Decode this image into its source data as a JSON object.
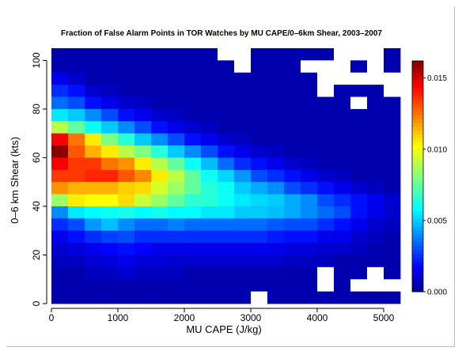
{
  "chart_data": {
    "type": "heatmap",
    "title": "Fraction of False Alarm Points in TOR Watches by MU CAPE/0–6km Shear, 2003–2007",
    "xlabel": "MU CAPE (J/kg)",
    "ylabel": "0–6 km Shear (kts)",
    "xlim": [
      0,
      5250
    ],
    "ylim": [
      0,
      105
    ],
    "x_bin_width": 250,
    "y_bin_width": 5,
    "x_bin_starts": [
      0,
      250,
      500,
      750,
      1000,
      1250,
      1500,
      1750,
      2000,
      2250,
      2500,
      2750,
      3000,
      3250,
      3500,
      3750,
      4000,
      4250,
      4500,
      4750,
      5000
    ],
    "y_bin_starts": [
      100,
      95,
      90,
      85,
      80,
      75,
      70,
      65,
      60,
      55,
      50,
      45,
      40,
      35,
      30,
      25,
      20,
      15,
      10,
      5,
      0
    ],
    "values_order": "rows from top (shear 100-105) to bottom (shear 0-5); columns from CAPE 0 to 5000; null = no data (white)",
    "values": [
      [
        0.0005,
        0.0005,
        0.0005,
        0.0005,
        0.0005,
        0.0005,
        0.0005,
        0.0005,
        0.0005,
        0.0005,
        null,
        null,
        0.0005,
        0.0005,
        0.0005,
        0.0005,
        0.0005,
        null,
        null,
        null,
        0.0005
      ],
      [
        0.0005,
        0.0005,
        0.0005,
        0.0005,
        0.0005,
        0.0005,
        0.0005,
        0.0005,
        0.0005,
        0.0005,
        0.0005,
        null,
        0.0005,
        0.0005,
        0.0005,
        null,
        null,
        null,
        0.0005,
        null,
        0.0005
      ],
      [
        0.0015,
        0.001,
        0.0005,
        0.0005,
        0.0005,
        0.0005,
        0.0005,
        0.0005,
        0.0005,
        0.0005,
        0.0005,
        0.0005,
        0.0005,
        0.0005,
        0.0005,
        0.0005,
        null,
        null,
        null,
        null,
        null
      ],
      [
        0.0025,
        0.002,
        0.001,
        0.0008,
        0.0005,
        0.0005,
        0.0005,
        0.0005,
        0.0005,
        0.0005,
        0.0005,
        0.0005,
        0.0005,
        0.0005,
        0.0005,
        0.0005,
        null,
        0.0005,
        0.0005,
        0.0005,
        null
      ],
      [
        0.0035,
        0.003,
        0.002,
        0.0015,
        0.001,
        0.0008,
        0.0005,
        0.0005,
        0.0005,
        0.0005,
        0.0005,
        0.0005,
        0.0005,
        0.0005,
        0.0005,
        0.0005,
        0.0005,
        0.0005,
        null,
        0.0005,
        0.0005
      ],
      [
        0.0055,
        0.005,
        0.004,
        0.003,
        0.002,
        0.0015,
        0.001,
        0.0008,
        0.0005,
        0.0005,
        0.0005,
        0.0005,
        0.0005,
        0.0005,
        0.0005,
        0.0005,
        0.0005,
        0.0005,
        0.0005,
        0.0005,
        0.0005
      ],
      [
        0.009,
        0.0075,
        0.006,
        0.005,
        0.004,
        0.003,
        0.002,
        0.0015,
        0.001,
        0.0008,
        0.0005,
        0.0005,
        0.0005,
        0.0005,
        0.0005,
        0.0005,
        0.0005,
        0.0005,
        0.0005,
        0.0005,
        0.0005
      ],
      [
        0.0145,
        0.0125,
        0.0105,
        0.008,
        0.0065,
        0.005,
        0.004,
        0.003,
        0.002,
        0.0015,
        0.001,
        0.0008,
        0.0005,
        0.0005,
        0.0005,
        0.0005,
        0.0005,
        0.0005,
        0.0005,
        0.0005,
        0.0005
      ],
      [
        0.016,
        0.013,
        0.0115,
        0.0105,
        0.009,
        0.008,
        0.0065,
        0.005,
        0.004,
        0.003,
        0.002,
        0.0015,
        0.001,
        0.0008,
        0.0005,
        0.0005,
        0.0005,
        0.0005,
        0.0005,
        0.0005,
        0.0005
      ],
      [
        0.0145,
        0.0135,
        0.0135,
        0.0125,
        0.012,
        0.0105,
        0.009,
        0.0075,
        0.006,
        0.0048,
        0.0035,
        0.0025,
        0.002,
        0.0015,
        0.001,
        0.0008,
        0.0005,
        0.0005,
        0.0005,
        0.0005,
        0.0005
      ],
      [
        0.0135,
        0.0135,
        0.0138,
        0.0138,
        0.013,
        0.0122,
        0.0105,
        0.009,
        0.0075,
        0.006,
        0.0052,
        0.0042,
        0.003,
        0.0025,
        0.002,
        0.0015,
        0.001,
        0.0008,
        0.0005,
        0.0005,
        0.0005
      ],
      [
        0.012,
        0.0115,
        0.0115,
        0.0115,
        0.011,
        0.0108,
        0.0095,
        0.0085,
        0.0075,
        0.0065,
        0.006,
        0.005,
        0.0045,
        0.004,
        0.003,
        0.0025,
        0.002,
        0.0015,
        0.001,
        0.0008,
        0.0005
      ],
      [
        0.0085,
        0.0105,
        0.0102,
        0.0102,
        0.0108,
        0.0093,
        0.0085,
        0.0075,
        0.0066,
        0.0065,
        0.006,
        0.0055,
        0.0052,
        0.005,
        0.0045,
        0.004,
        0.003,
        0.0025,
        0.002,
        0.0015,
        0.001
      ],
      [
        0.004,
        0.0055,
        0.0058,
        0.006,
        0.0062,
        0.0058,
        0.0062,
        0.0058,
        0.0058,
        0.0055,
        0.0055,
        0.005,
        0.005,
        0.0048,
        0.0045,
        0.004,
        0.0035,
        0.003,
        0.002,
        0.0015,
        0.001
      ],
      [
        0.0025,
        0.003,
        0.0042,
        0.0048,
        0.004,
        0.0035,
        0.0035,
        0.0038,
        0.0035,
        0.0035,
        0.0035,
        0.0035,
        0.0035,
        0.0032,
        0.003,
        0.003,
        0.0025,
        0.002,
        0.0015,
        0.001,
        0.0008
      ],
      [
        0.0015,
        0.002,
        0.0025,
        0.0028,
        0.003,
        0.0025,
        0.0025,
        0.0025,
        0.0025,
        0.0025,
        0.0025,
        0.0025,
        0.0025,
        0.0022,
        0.002,
        0.002,
        0.0015,
        0.0015,
        0.001,
        0.0008,
        0.0005
      ],
      [
        0.001,
        0.0012,
        0.0015,
        0.0018,
        0.002,
        0.0018,
        0.0015,
        0.0015,
        0.0015,
        0.0015,
        0.0015,
        0.0015,
        0.0015,
        0.0015,
        0.0012,
        0.0012,
        0.001,
        0.001,
        0.0008,
        0.0005,
        0.0005
      ],
      [
        0.0008,
        0.0008,
        0.001,
        0.0012,
        0.0015,
        0.0012,
        0.0012,
        0.001,
        0.001,
        0.001,
        0.001,
        0.001,
        0.001,
        0.001,
        0.0008,
        0.0008,
        0.0008,
        0.0005,
        0.0005,
        0.0005,
        0.0005
      ],
      [
        0.0005,
        0.0005,
        0.0008,
        0.0008,
        0.001,
        0.0008,
        0.0008,
        0.0008,
        0.0005,
        0.0005,
        0.0005,
        0.0005,
        0.0005,
        0.0005,
        0.0005,
        0.0005,
        null,
        0.0005,
        0.0005,
        null,
        0.0005
      ],
      [
        0.0005,
        0.0005,
        0.0005,
        0.0005,
        0.0005,
        0.0005,
        0.0005,
        0.0005,
        0.0005,
        0.0005,
        0.0005,
        0.0005,
        0.0005,
        0.0005,
        0.0005,
        0.0005,
        null,
        0.0005,
        null,
        null,
        null
      ],
      [
        0.0005,
        0.0005,
        0.0005,
        0.0005,
        0.0005,
        0.0005,
        0.0005,
        0.0005,
        0.0005,
        0.0005,
        0.0005,
        0.0005,
        null,
        0.0005,
        0.0005,
        0.0005,
        0.0005,
        0.0005,
        0.0005,
        0.0005,
        0.0005
      ]
    ],
    "x_ticks": [
      0,
      1000,
      2000,
      3000,
      4000,
      5000
    ],
    "y_ticks": [
      0,
      20,
      40,
      60,
      80,
      100
    ],
    "colorbar": {
      "range": [
        0,
        0.0162
      ],
      "ticks": [
        "0.000",
        "0.005",
        "0.010",
        "0.015"
      ],
      "tick_values": [
        0,
        0.005,
        0.01,
        0.015
      ],
      "placement": "right",
      "colormap": [
        "#00008f",
        "#0000ff",
        "#00ffff",
        "#ffff00",
        "#ff0000",
        "#800000"
      ]
    },
    "missing_color": "#ffffff",
    "grid": false
  }
}
